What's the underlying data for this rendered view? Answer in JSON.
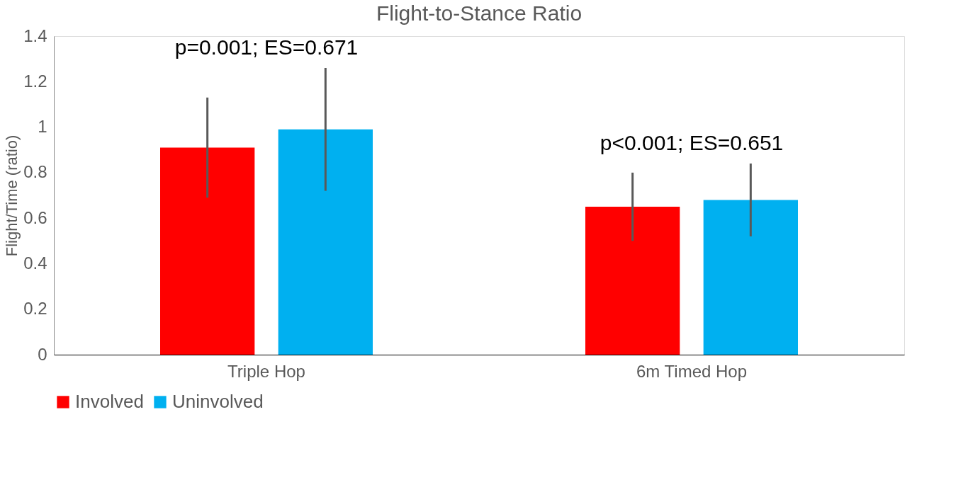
{
  "chart_data": {
    "type": "bar",
    "title": "Flight-to-Stance Ratio",
    "ylabel": "Flight/Time (ratio)",
    "categories": [
      "Triple Hop",
      "6m Timed Hop"
    ],
    "series": [
      {
        "name": "Involved",
        "color": "#ff0000",
        "values": [
          0.91,
          0.65
        ],
        "errors": [
          0.22,
          0.15
        ]
      },
      {
        "name": "Uninvolved",
        "color": "#00b0f0",
        "values": [
          0.99,
          0.68
        ],
        "errors": [
          0.27,
          0.16
        ]
      }
    ],
    "ylim": [
      0,
      1.4
    ],
    "yticks": [
      0,
      0.2,
      0.4,
      0.6,
      0.8,
      1,
      1.2,
      1.4
    ],
    "grid": false,
    "legend": "bottom",
    "annotations": [
      "p=0.001; ES=0.671",
      "p<0.001; ES=0.651"
    ]
  }
}
